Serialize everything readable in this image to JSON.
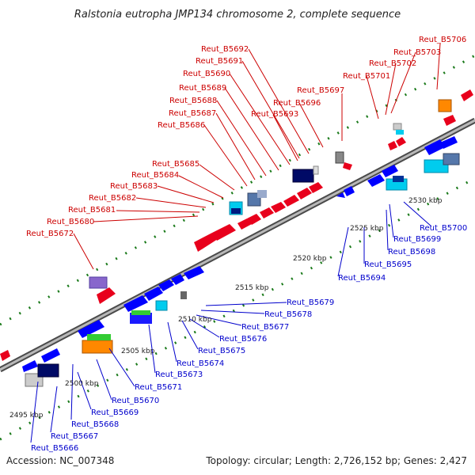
{
  "title": "Ralstonia eutropha JMP134 chromosome 2, complete sequence",
  "footer": {
    "accession": "Accession: NC_007348",
    "summary": "Topology: circular; Length: 2,726,152 bp; Genes: 2,427"
  },
  "colors": {
    "forward_label": "#cc0000",
    "reverse_label": "#0000cc",
    "backbone": "#888888",
    "tick": "#1a7a1a"
  },
  "scale_labels": [
    "2495 kbp",
    "2500 kbp",
    "2505 kbp",
    "2510 kbp",
    "2515 kbp",
    "2520 kbp",
    "2525 kbp",
    "2530 kbp"
  ],
  "forward_genes": [
    "Reut_B5672",
    "Reut_B5680",
    "Reut_B5681",
    "Reut_B5682",
    "Reut_B5683",
    "Reut_B5684",
    "Reut_B5685",
    "Reut_B5686",
    "Reut_B5687",
    "Reut_B5688",
    "Reut_B5689",
    "Reut_B5690",
    "Reut_B5691",
    "Reut_B5692",
    "Reut_B5693",
    "Reut_B5696",
    "Reut_B5697",
    "Reut_B5701",
    "Reut_B5702",
    "Reut_B5703",
    "Reut_B5706"
  ],
  "reverse_genes": [
    "Reut_B5666",
    "Reut_B5667",
    "Reut_B5668",
    "Reut_B5669",
    "Reut_B5670",
    "Reut_B5671",
    "Reut_B5673",
    "Reut_B5674",
    "Reut_B5675",
    "Reut_B5676",
    "Reut_B5677",
    "Reut_B5678",
    "Reut_B5679",
    "Reut_B5694",
    "Reut_B5695",
    "Reut_B5698",
    "Reut_B5699",
    "Reut_B5700"
  ]
}
